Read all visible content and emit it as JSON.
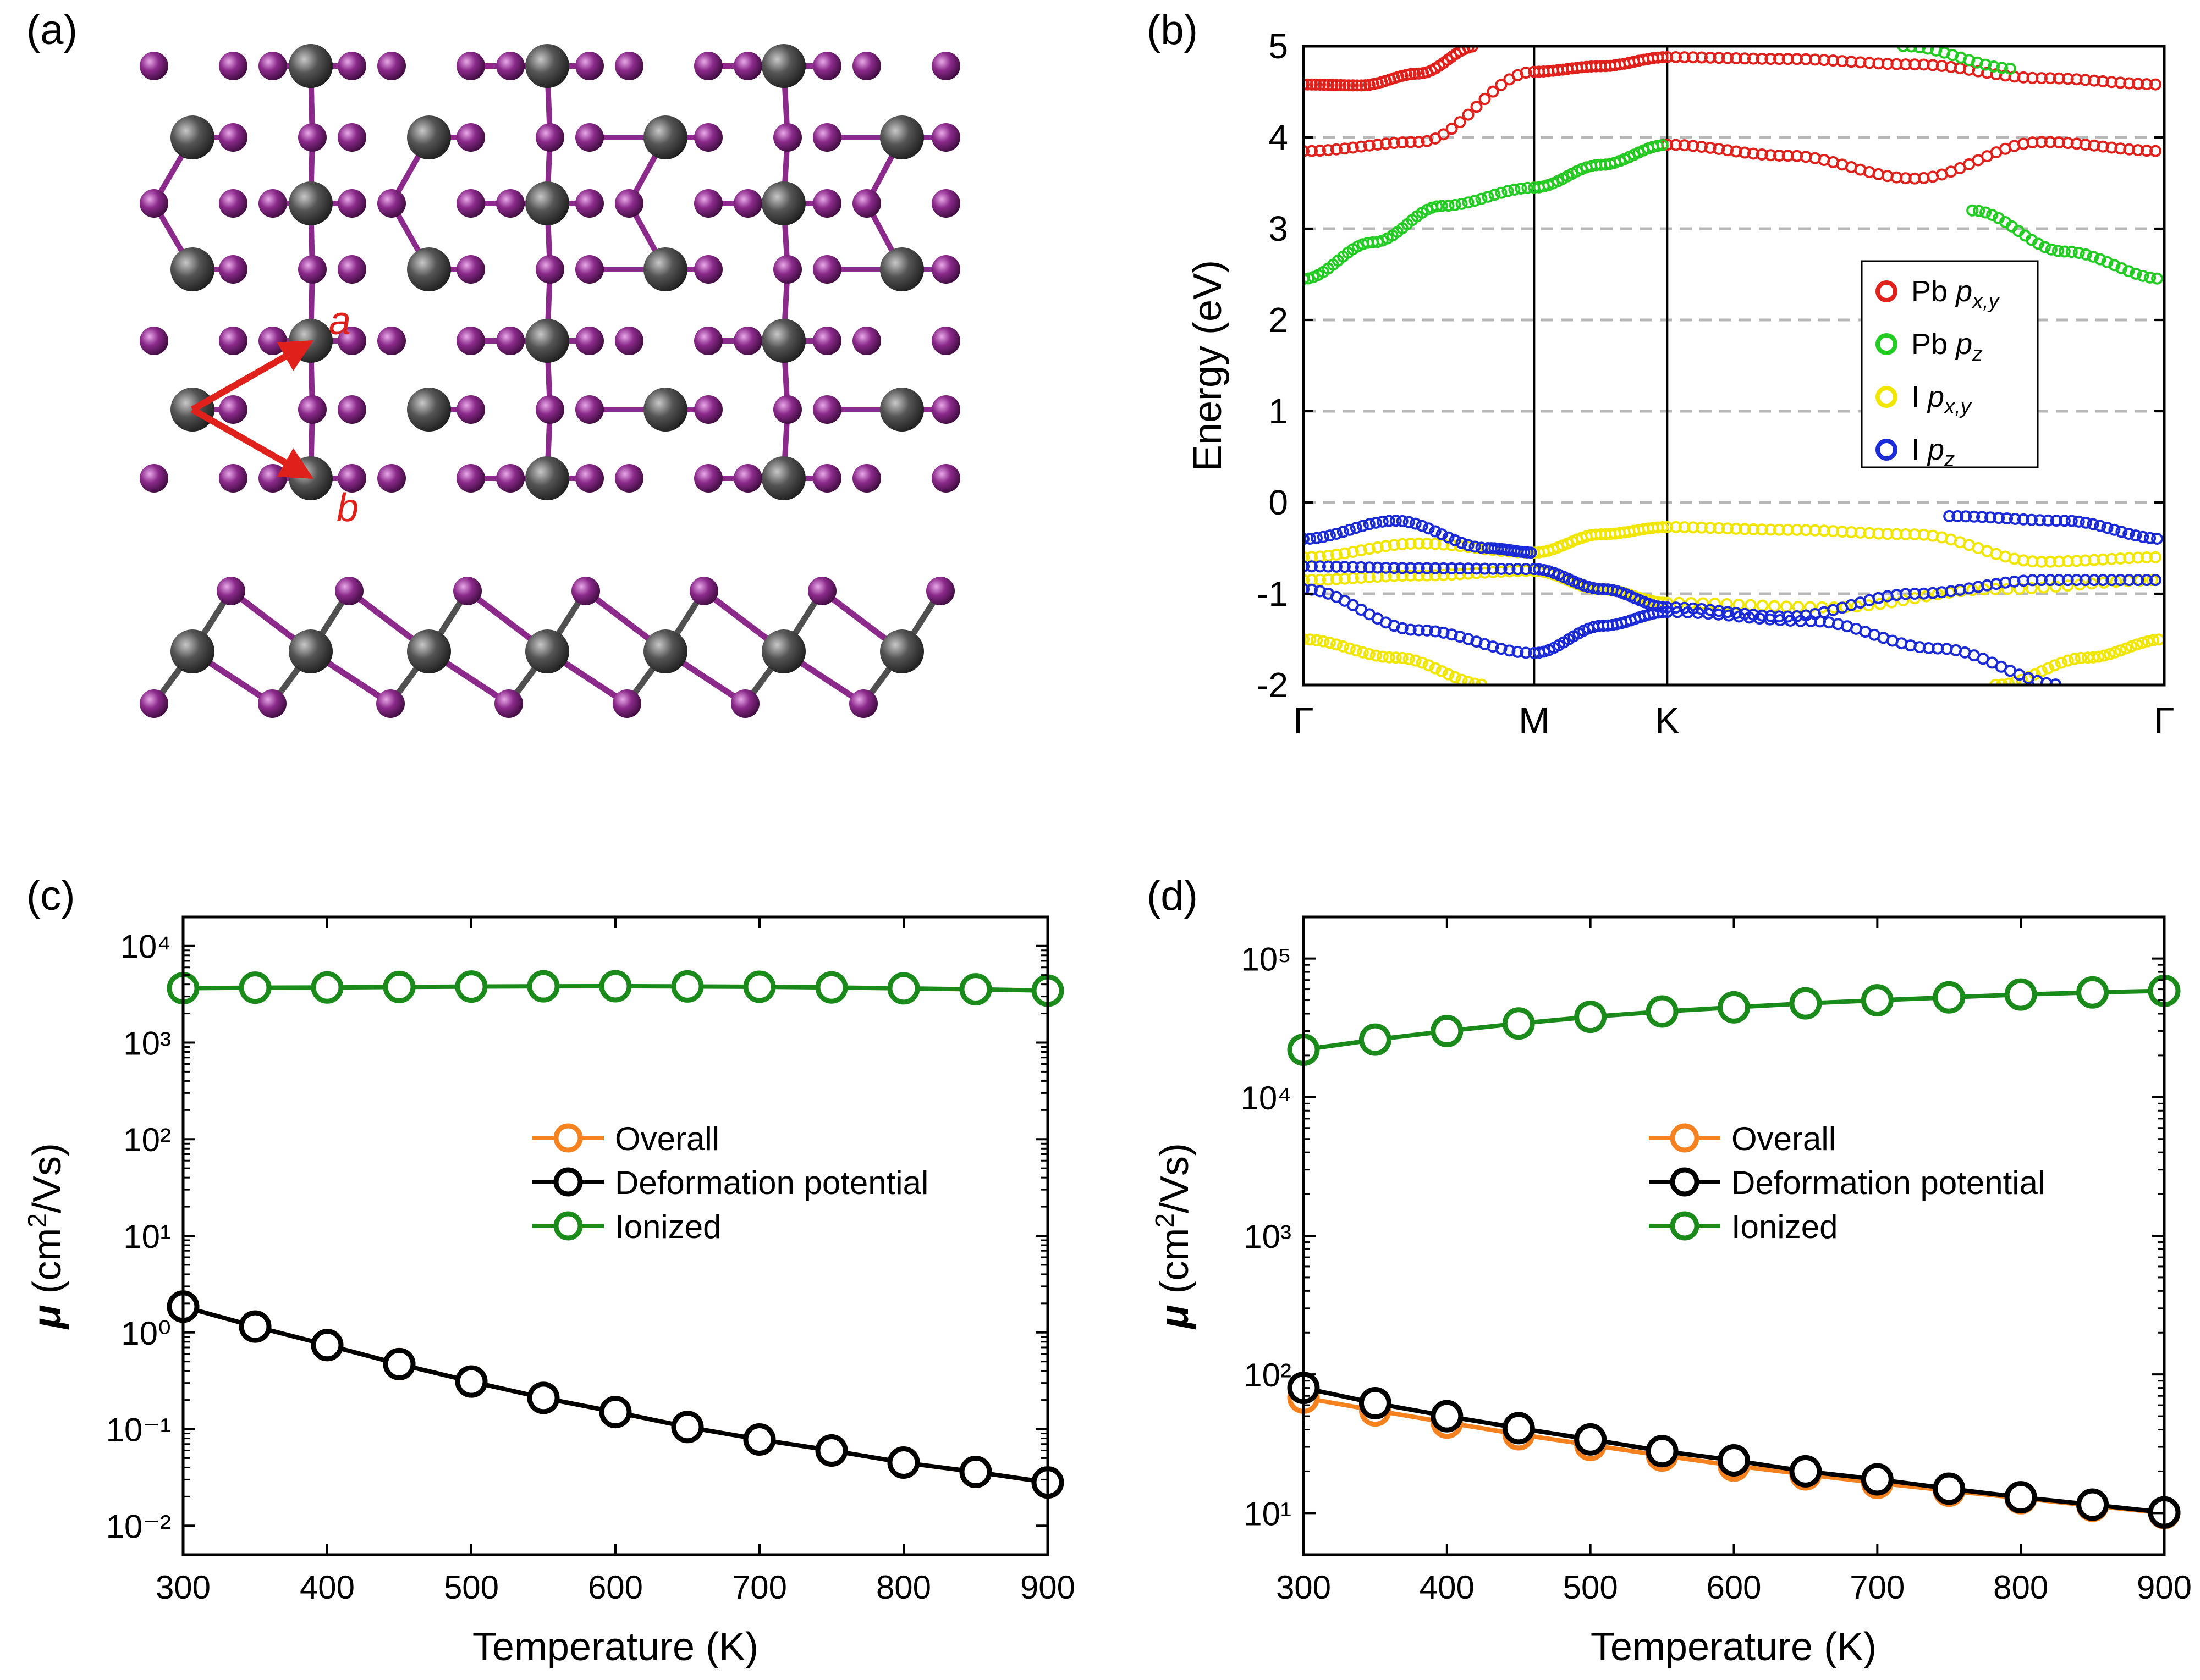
{
  "panel_labels": {
    "a": "(a)",
    "b": "(b)",
    "c": "(c)",
    "d": "(d)"
  },
  "structure": {
    "vector_a": "a",
    "vector_b": "b",
    "pb_color": "#505050",
    "i_color": "#8b2a8b",
    "arrow_color": "#e0201a"
  },
  "chart_data": [
    {
      "id": "b",
      "type": "scatter",
      "title": "",
      "xlabel": "",
      "ylabel": "Energy (eV)",
      "ylim": [
        -2,
        5
      ],
      "yticks": [
        -2,
        -1,
        0,
        1,
        2,
        3,
        4,
        5
      ],
      "kpath": {
        "labels": [
          "Γ",
          "M",
          "K",
          "Γ"
        ],
        "positions": [
          0,
          1,
          1.577,
          3.732
        ]
      },
      "legend_position": "right",
      "series": [
        {
          "name": "Pb p_x,y",
          "legend_main": "Pb ",
          "legend_sub": "x,y",
          "color": "#e0201a",
          "bands": [
            {
              "x": [
                0,
                0.5,
                1,
                1.289,
                1.577,
                2.1,
                2.65,
                3.2,
                3.732
              ],
              "y": [
                3.85,
                3.95,
                4.72,
                4.78,
                4.88,
                4.86,
                4.8,
                4.65,
                4.58
              ]
            },
            {
              "x": [
                0,
                0.25,
                0.5,
                0.75
              ],
              "y": [
                4.58,
                4.57,
                4.7,
                5.0
              ]
            },
            {
              "x": [
                1,
                1.289,
                1.577,
                2.1,
                2.65,
                3.2,
                3.732
              ],
              "y": [
                3.45,
                3.7,
                3.92,
                3.8,
                3.55,
                3.95,
                3.85
              ]
            }
          ]
        },
        {
          "name": "Pb p_z",
          "legend_main": "Pb ",
          "legend_sub": "z",
          "color": "#22cc22",
          "bands": [
            {
              "x": [
                0,
                0.3,
                0.6,
                1,
                1.289,
                1.577
              ],
              "y": [
                2.45,
                2.85,
                3.25,
                3.45,
                3.7,
                3.92
              ]
            },
            {
              "x": [
                2.9,
                3.3,
                3.732
              ],
              "y": [
                3.2,
                2.75,
                2.45
              ]
            },
            {
              "x": [
                2.6,
                3.1
              ],
              "y": [
                5.0,
                4.75
              ]
            }
          ]
        },
        {
          "name": "I p_x,y",
          "legend_main": "I ",
          "legend_sub": "x,y",
          "color": "#f0e600",
          "bands": [
            {
              "x": [
                0,
                0.5,
                1,
                1.289,
                1.577,
                2.1,
                2.65,
                3.2,
                3.732
              ],
              "y": [
                -0.6,
                -0.45,
                -0.55,
                -0.35,
                -0.27,
                -0.3,
                -0.35,
                -0.65,
                -0.6
              ]
            },
            {
              "x": [
                0,
                0.5,
                1,
                1.289,
                1.577,
                2.3,
                3.0,
                3.732
              ],
              "y": [
                -0.85,
                -0.8,
                -0.75,
                -0.95,
                -1.1,
                -1.15,
                -0.95,
                -0.85
              ]
            },
            {
              "x": [
                0,
                0.4,
                0.8
              ],
              "y": [
                -1.5,
                -1.7,
                -2.0
              ]
            },
            {
              "x": [
                3.0,
                3.4,
                3.732
              ],
              "y": [
                -2.0,
                -1.7,
                -1.5
              ]
            }
          ]
        },
        {
          "name": "I p_z",
          "legend_main": "I ",
          "legend_sub": "z",
          "color": "#1a2ad6",
          "bands": [
            {
              "x": [
                0,
                0.4,
                0.8,
                1
              ],
              "y": [
                -0.4,
                -0.2,
                -0.5,
                -0.55
              ]
            },
            {
              "x": [
                2.8,
                3.3,
                3.732
              ],
              "y": [
                -0.15,
                -0.2,
                -0.4
              ]
            },
            {
              "x": [
                0,
                0.5,
                1,
                1.3,
                1.577,
                2.1,
                2.65,
                3.2,
                3.732
              ],
              "y": [
                -0.7,
                -0.72,
                -0.73,
                -0.95,
                -1.15,
                -1.25,
                -1.0,
                -0.85,
                -0.85
              ]
            },
            {
              "x": [
                0,
                0.5,
                1,
                1.3,
                1.577,
                2.2,
                2.75,
                3.3
              ],
              "y": [
                -0.95,
                -1.4,
                -1.65,
                -1.35,
                -1.2,
                -1.3,
                -1.6,
                -2.0
              ]
            }
          ]
        }
      ]
    },
    {
      "id": "c",
      "type": "line",
      "xlabel": "Temperature (K)",
      "ylabel_mu": "μ",
      "ylabel_unit": " (cm",
      "ylabel_exp": "2",
      "ylabel_tail": "/Vs)",
      "yscale": "log",
      "xlim": [
        300,
        900
      ],
      "ylim_exp": [
        -2.3,
        4.3
      ],
      "xticks": [
        300,
        400,
        500,
        600,
        700,
        800,
        900
      ],
      "yticks_exp": [
        -2,
        -1,
        0,
        1,
        2,
        3,
        4
      ],
      "legend_position": "center",
      "x": [
        300,
        350,
        400,
        450,
        500,
        550,
        600,
        650,
        700,
        750,
        800,
        850,
        900
      ],
      "series": [
        {
          "name": "Overall",
          "color": "#f5821f",
          "values": [
            1.85,
            1.15,
            0.74,
            0.47,
            0.31,
            0.21,
            0.15,
            0.105,
            0.078,
            0.06,
            0.045,
            0.036,
            0.028
          ]
        },
        {
          "name": "Deformation potential",
          "color": "#000000",
          "values": [
            1.85,
            1.15,
            0.74,
            0.47,
            0.31,
            0.21,
            0.15,
            0.105,
            0.078,
            0.06,
            0.045,
            0.036,
            0.028
          ]
        },
        {
          "name": "Ionized",
          "color": "#1a8a1a",
          "values": [
            3650,
            3700,
            3720,
            3760,
            3800,
            3820,
            3830,
            3810,
            3780,
            3720,
            3640,
            3560,
            3450
          ]
        }
      ]
    },
    {
      "id": "d",
      "type": "line",
      "xlabel": "Temperature (K)",
      "ylabel_mu": "μ",
      "ylabel_unit": " (cm",
      "ylabel_exp": "2",
      "ylabel_tail": "/Vs)",
      "yscale": "log",
      "xlim": [
        300,
        900
      ],
      "ylim_exp": [
        0.7,
        5.3
      ],
      "xticks": [
        300,
        400,
        500,
        600,
        700,
        800,
        900
      ],
      "yticks_exp": [
        1,
        2,
        3,
        4,
        5
      ],
      "legend_position": "center",
      "x": [
        300,
        350,
        400,
        450,
        500,
        550,
        600,
        650,
        700,
        750,
        800,
        850,
        900
      ],
      "series": [
        {
          "name": "Overall",
          "color": "#f5821f",
          "values": [
            68,
            55,
            45,
            37,
            31,
            26,
            22,
            19,
            16.5,
            14.5,
            12.8,
            11.3,
            10
          ]
        },
        {
          "name": "Deformation potential",
          "color": "#000000",
          "values": [
            80,
            62,
            50,
            41,
            34,
            28,
            24,
            20,
            17.5,
            15,
            13,
            11.5,
            10.1
          ]
        },
        {
          "name": "Ionized",
          "color": "#1a8a1a",
          "values": [
            22000,
            26000,
            30000,
            34000,
            38000,
            41500,
            44500,
            47500,
            50000,
            52500,
            55000,
            57000,
            58500
          ]
        }
      ]
    }
  ]
}
